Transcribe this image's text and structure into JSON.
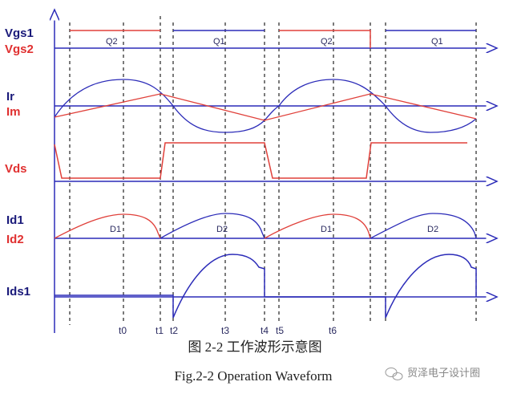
{
  "colors": {
    "blue": "#2b2bb8",
    "red": "#e0403a",
    "label_blue": "#1a1a7a",
    "label_red": "#e03030"
  },
  "signals": {
    "vgs1": "Vgs1",
    "vgs2": "Vgs2",
    "ir": "Ir",
    "im": "Im",
    "vds": "Vds",
    "id1": "Id1",
    "id2": "Id2",
    "ids1": "Ids1"
  },
  "gate_labels": [
    "Q2",
    "Q1",
    "Q2",
    "Q1"
  ],
  "diode_labels": [
    "D1",
    "D2",
    "D1",
    "D2"
  ],
  "time_labels": [
    "t0",
    "t1",
    "t2",
    "t3",
    "t4",
    "t5",
    "t6"
  ],
  "caption_cn": "图 2-2  工作波形示意图",
  "caption_en": "Fig.2-2 Operation Waveform",
  "watermark": "贸泽电子设计圈"
}
